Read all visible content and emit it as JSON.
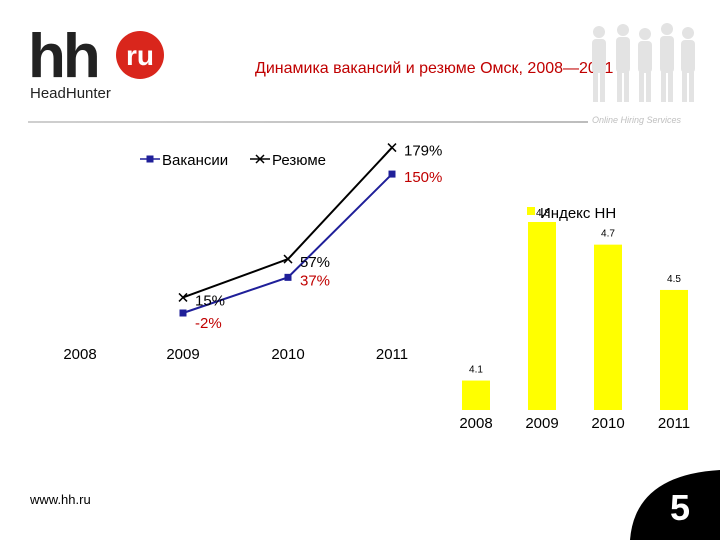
{
  "header": {
    "logo_main": "hh",
    "logo_badge": "ru",
    "logo_sub": "HeadHunter",
    "tagline": "Online Hiring Services",
    "title": "Динамика вакансий и резюме  Омск, 2008—2011 г."
  },
  "footer": {
    "url": "www.hh.ru",
    "page_number": "5"
  },
  "colors": {
    "brand_red": "#d9261c",
    "title_red": "#c00000",
    "vacancies_line": "#1f1f99",
    "resume_line": "#000000",
    "bar_yellow": "#ffff00"
  },
  "chart_data": [
    {
      "type": "line",
      "legend_position": "top-left",
      "x": [
        "2008",
        "2009",
        "2010",
        "2011"
      ],
      "series": [
        {
          "name": "Вакансии",
          "marker": "square",
          "values": [
            null,
            -2,
            37,
            150
          ],
          "labels": [
            "",
            "-2%",
            "37%",
            "150%"
          ]
        },
        {
          "name": "Резюме",
          "marker": "x",
          "values": [
            null,
            15,
            57,
            179
          ],
          "labels": [
            "",
            "15%",
            "57%",
            "179%"
          ]
        }
      ],
      "unit": "%",
      "grid": false
    },
    {
      "type": "bar",
      "legend": "Индекс НН",
      "categories": [
        "2008",
        "2009",
        "2010",
        "2011"
      ],
      "values": [
        4.1,
        4.8,
        4.7,
        4.5
      ],
      "labels": [
        "4.1",
        "4.8",
        "4.7",
        "4.5"
      ],
      "ylim": [
        4.0,
        4.8
      ],
      "grid": false
    }
  ]
}
